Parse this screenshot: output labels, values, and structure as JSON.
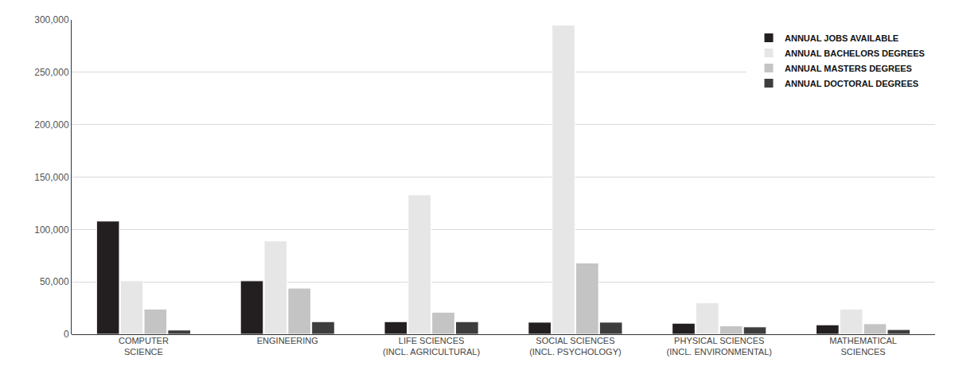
{
  "chart_data": {
    "type": "bar",
    "categories": [
      "COMPUTER\nSCIENCE",
      "ENGINEERING",
      "LIFE SCIENCES\n(INCL. AGRICULTURAL)",
      "SOCIAL SCIENCES\n(INCL. PSYCHOLOGY)",
      "PHYSICAL SCIENCES\n(INCL. ENVIRONMENTAL)",
      "MATHEMATICAL\nSCIENCES"
    ],
    "series": [
      {
        "name": "ANNUAL JOBS AVAILABLE",
        "color": "#231f20",
        "values": [
          108000,
          51000,
          12000,
          11500,
          10500,
          9000
        ]
      },
      {
        "name": "ANNUAL BACHELORS DEGREES",
        "color": "#e6e6e6",
        "values": [
          51000,
          89000,
          133000,
          295000,
          30000,
          24000
        ]
      },
      {
        "name": "ANNUAL MASTERS DEGREES",
        "color": "#c4c4c4",
        "values": [
          24000,
          44000,
          21000,
          68000,
          8000,
          10000
        ]
      },
      {
        "name": "ANNUAL DOCTORAL DEGREES",
        "color": "#3d3d3d",
        "values": [
          4000,
          12000,
          12000,
          11500,
          7000,
          4500
        ]
      }
    ],
    "ylim": [
      0,
      300000
    ],
    "yticks": [
      0,
      {
        "value": 50000,
        "label": "50,000"
      },
      {
        "value": 100000,
        "label": "100,000"
      },
      {
        "value": 150000,
        "label": "150,000"
      },
      {
        "value": 200000,
        "label": "200,000"
      },
      {
        "value": 250000,
        "label": "250,000"
      },
      {
        "value": 300000,
        "label": "300,000"
      }
    ],
    "grid": true,
    "legend": "top right"
  }
}
